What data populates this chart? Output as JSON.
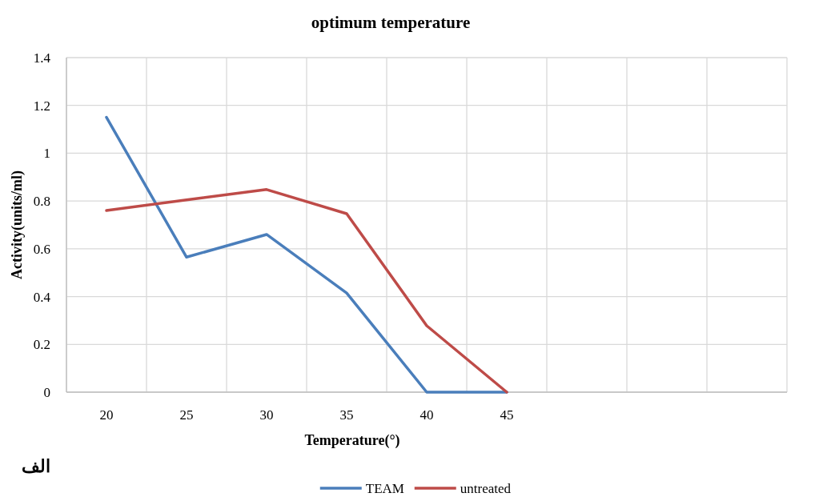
{
  "chart_data": {
    "type": "line",
    "title": "optimum temperature",
    "xlabel": "Temperature(°)",
    "ylabel": "Activity(units/ml)",
    "annotations": [
      "الف"
    ],
    "categories": [
      "20",
      "25",
      "30",
      "35",
      "40",
      "45",
      null,
      null,
      null
    ],
    "series": [
      {
        "name": "TEAM",
        "color": "#4a7ebb",
        "values": [
          1.15,
          0.565,
          0.66,
          0.415,
          0,
          0,
          null,
          null,
          null
        ]
      },
      {
        "name": "untreated",
        "color": "#be4b48",
        "values": [
          0.76,
          0.805,
          0.848,
          0.747,
          0.278,
          0,
          null,
          null,
          null
        ]
      }
    ],
    "ylim": [
      0,
      1.4
    ],
    "yticks": [
      0,
      0.2,
      0.4,
      0.6,
      0.8,
      1,
      1.2,
      1.4
    ],
    "grid": true,
    "legend": "bottom"
  }
}
